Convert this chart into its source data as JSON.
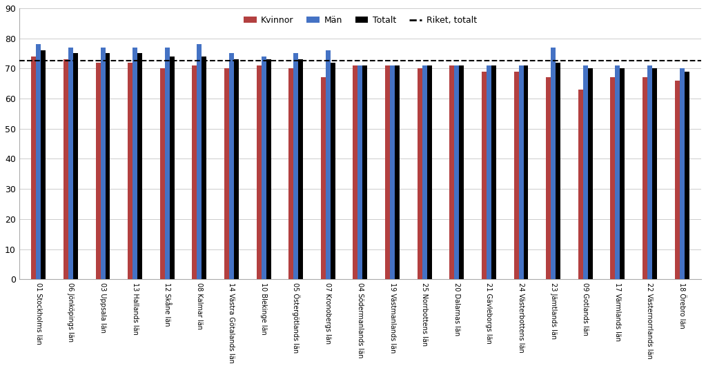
{
  "categories": [
    "01 Stockholms län",
    "06 Jönköpings län",
    "03 Uppsala län",
    "13 Hallands län",
    "12 Skåne län",
    "08 Kalmar län",
    "14 Västra Götalands län",
    "10 Blekinge län",
    "05 Östergötlands län",
    "07 Kronobergs län",
    "04 Södermanlands län",
    "19 Västmanlands län",
    "25 Norrbottens län",
    "20 Dalarnas län",
    "21 Gävleborgs län",
    "24 Västerbottens län",
    "23 Jämtlands län",
    "09 Gotlands län",
    "17 Värmlands län",
    "22 Västernorrlands län",
    "18 Örebro län"
  ],
  "kvinnor": [
    74,
    73,
    72,
    72,
    70,
    71,
    70,
    71,
    70,
    67,
    71,
    71,
    70,
    71,
    69,
    69,
    67,
    63,
    67,
    67,
    66
  ],
  "man": [
    78,
    77,
    77,
    77,
    77,
    78,
    75,
    74,
    75,
    76,
    71,
    71,
    71,
    71,
    71,
    71,
    77,
    71,
    71,
    71,
    70
  ],
  "totalt": [
    76,
    75,
    75,
    75,
    74,
    74,
    73,
    73,
    73,
    72,
    71,
    71,
    71,
    71,
    71,
    71,
    72,
    70,
    70,
    70,
    69
  ],
  "riket_totalt": 72.5,
  "color_kvinnor": "#B34040",
  "color_man": "#4472C4",
  "color_totalt": "#000000",
  "color_riket": "#000000",
  "ylim": [
    0,
    90
  ],
  "yticks": [
    0,
    10,
    20,
    30,
    40,
    50,
    60,
    70,
    80,
    90
  ],
  "legend_labels": [
    "Kvinnor",
    "Män",
    "Totalt",
    "Riket, totalt"
  ],
  "bar_width": 0.15
}
